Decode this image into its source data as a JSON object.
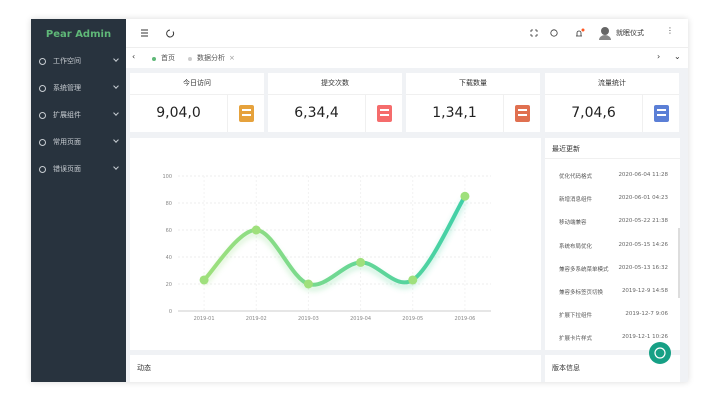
{
  "sidebar": {
    "logo": "Pear Admin",
    "menu": [
      "工作空间",
      "系统管理",
      "扩展组件",
      "常用页面",
      "错误页面"
    ]
  },
  "header": {
    "user": "就眠仪式"
  },
  "tabs": [
    "首页",
    "数据分析"
  ],
  "cards": [
    {
      "title": "今日访问",
      "value": "9,04,0"
    },
    {
      "title": "提交次数",
      "value": "6,34,4"
    },
    {
      "title": "下载数量",
      "value": "1,34,1"
    },
    {
      "title": "流量统计",
      "value": "7,04,6"
    }
  ],
  "chart_data": {
    "type": "line",
    "categories": [
      "2019-01",
      "2019-02",
      "2019-03",
      "2019-04",
      "2019-05",
      "2019-06"
    ],
    "values": [
      23,
      60,
      20,
      36,
      23,
      85
    ],
    "color": "#9fe07c",
    "color_end": "#40d0a8",
    "ylim": [
      0,
      100
    ],
    "yticks": [
      0,
      20,
      40,
      60,
      80,
      100
    ],
    "grid": true
  },
  "updates": {
    "title": "最近更新",
    "items": [
      {
        "text": "优化代码格式",
        "time": "2020-06-04 11:28"
      },
      {
        "text": "新增消息组件",
        "time": "2020-06-01 04:23"
      },
      {
        "text": "移动端兼容",
        "time": "2020-05-22 21:38"
      },
      {
        "text": "系统布局优化",
        "time": "2020-05-15 14:26"
      },
      {
        "text": "兼容多系统菜单模式",
        "time": "2020-05-13 16:32"
      },
      {
        "text": "兼容多标签页切换",
        "time": "2019-12-9 14:58"
      },
      {
        "text": "扩展下拉组件",
        "time": "2019-12-7 9:06"
      },
      {
        "text": "扩展卡片样式",
        "time": "2019-12-1 10:26"
      }
    ]
  },
  "panels": [
    "动态",
    "版本信息"
  ]
}
